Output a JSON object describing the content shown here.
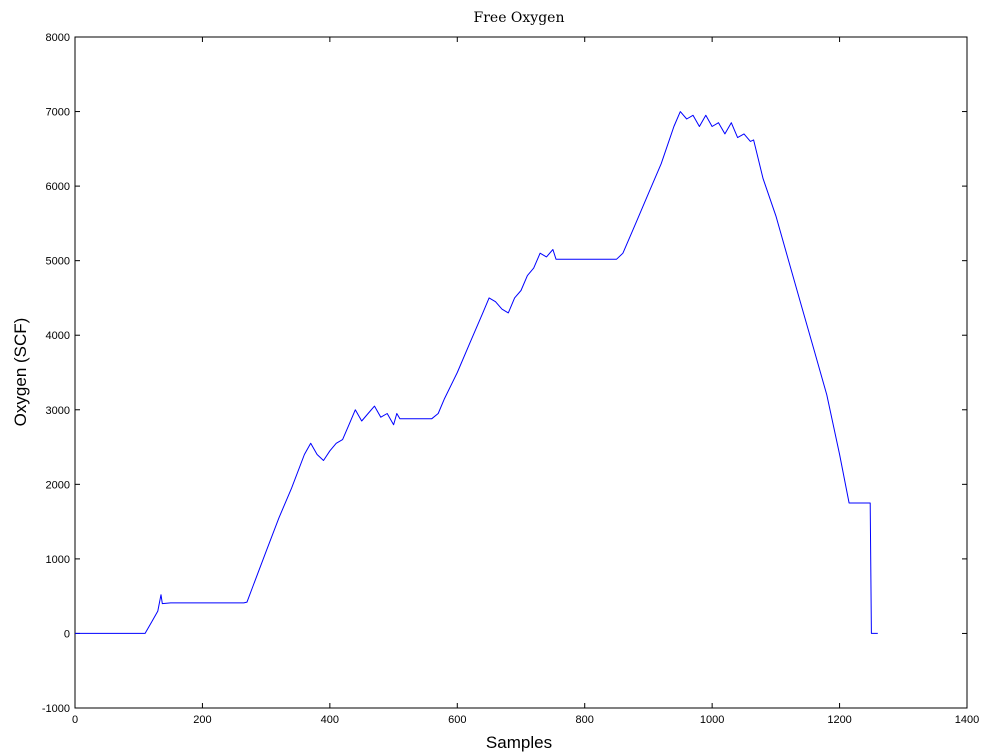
{
  "chart_data": {
    "type": "line",
    "title": "Free Oxygen",
    "xlabel": "Samples",
    "ylabel": "Oxygen (SCF)",
    "xlim": [
      0,
      1400
    ],
    "ylim": [
      -1000,
      8000
    ],
    "xticks": [
      "0",
      "200",
      "400",
      "600",
      "800",
      "1000",
      "1200",
      "1400"
    ],
    "yticks": [
      "-1000",
      "0",
      "1000",
      "2000",
      "3000",
      "4000",
      "5000",
      "6000",
      "7000",
      "8000"
    ],
    "grid": false,
    "series": [
      {
        "color": "#0000ff",
        "points": [
          [
            0,
            0
          ],
          [
            110,
            0
          ],
          [
            120,
            150
          ],
          [
            130,
            300
          ],
          [
            135,
            520
          ],
          [
            137,
            400
          ],
          [
            150,
            410
          ],
          [
            200,
            410
          ],
          [
            265,
            410
          ],
          [
            270,
            420
          ],
          [
            280,
            650
          ],
          [
            300,
            1100
          ],
          [
            320,
            1550
          ],
          [
            340,
            1950
          ],
          [
            360,
            2400
          ],
          [
            370,
            2550
          ],
          [
            380,
            2400
          ],
          [
            390,
            2320
          ],
          [
            400,
            2450
          ],
          [
            410,
            2550
          ],
          [
            420,
            2600
          ],
          [
            430,
            2800
          ],
          [
            440,
            3000
          ],
          [
            450,
            2850
          ],
          [
            460,
            2950
          ],
          [
            470,
            3050
          ],
          [
            480,
            2900
          ],
          [
            490,
            2950
          ],
          [
            500,
            2800
          ],
          [
            505,
            2950
          ],
          [
            510,
            2880
          ],
          [
            560,
            2880
          ],
          [
            570,
            2950
          ],
          [
            580,
            3150
          ],
          [
            600,
            3500
          ],
          [
            620,
            3900
          ],
          [
            640,
            4300
          ],
          [
            650,
            4500
          ],
          [
            660,
            4450
          ],
          [
            670,
            4350
          ],
          [
            680,
            4300
          ],
          [
            690,
            4500
          ],
          [
            700,
            4600
          ],
          [
            710,
            4800
          ],
          [
            720,
            4900
          ],
          [
            730,
            5100
          ],
          [
            740,
            5050
          ],
          [
            750,
            5150
          ],
          [
            755,
            5020
          ],
          [
            850,
            5020
          ],
          [
            860,
            5100
          ],
          [
            880,
            5500
          ],
          [
            900,
            5900
          ],
          [
            920,
            6300
          ],
          [
            940,
            6800
          ],
          [
            950,
            7000
          ],
          [
            960,
            6900
          ],
          [
            970,
            6950
          ],
          [
            980,
            6800
          ],
          [
            990,
            6950
          ],
          [
            1000,
            6800
          ],
          [
            1010,
            6850
          ],
          [
            1020,
            6700
          ],
          [
            1030,
            6850
          ],
          [
            1040,
            6650
          ],
          [
            1050,
            6700
          ],
          [
            1060,
            6600
          ],
          [
            1065,
            6620
          ],
          [
            1080,
            6100
          ],
          [
            1100,
            5600
          ],
          [
            1120,
            5000
          ],
          [
            1140,
            4400
          ],
          [
            1160,
            3800
          ],
          [
            1180,
            3200
          ],
          [
            1200,
            2400
          ],
          [
            1215,
            1750
          ],
          [
            1248,
            1750
          ],
          [
            1250,
            0
          ],
          [
            1260,
            0
          ]
        ]
      }
    ]
  }
}
